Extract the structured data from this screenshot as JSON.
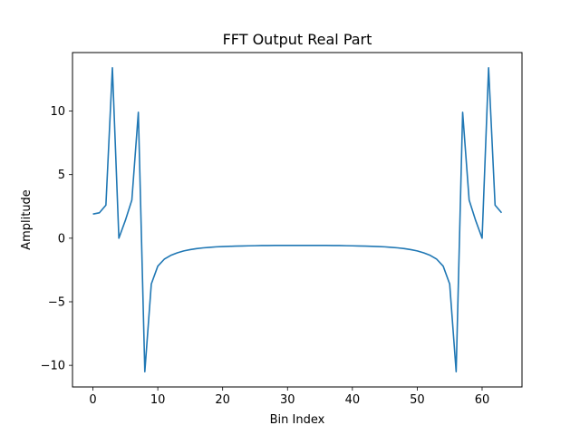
{
  "chart_data": {
    "type": "line",
    "title": "FFT Output Real Part",
    "xlabel": "Bin Index",
    "ylabel": "Amplitude",
    "xlim": [
      -3.15,
      66.15
    ],
    "ylim": [
      -11.7,
      14.6
    ],
    "xticks": [
      0,
      10,
      20,
      30,
      40,
      50,
      60
    ],
    "yticks": [
      -10,
      -5,
      0,
      5,
      10
    ],
    "grid": false,
    "line_color": "#1f77b4",
    "series": [
      {
        "x": [
          0,
          1,
          2,
          3,
          4,
          5,
          6,
          7,
          8,
          9,
          10,
          11,
          12,
          13,
          14,
          15,
          16,
          17,
          18,
          19,
          20,
          21,
          22,
          23,
          24,
          25,
          26,
          27,
          28,
          29,
          30,
          31,
          32,
          33,
          34,
          35,
          36,
          37,
          38,
          39,
          40,
          41,
          42,
          43,
          44,
          45,
          46,
          47,
          48,
          49,
          50,
          51,
          52,
          53,
          54,
          55,
          56,
          57,
          58,
          59,
          60,
          61,
          62,
          63
        ],
        "y": [
          1.9,
          2.0,
          2.6,
          13.4,
          0.0,
          1.4,
          3.0,
          9.9,
          -10.5,
          -3.6,
          -2.2,
          -1.65,
          -1.35,
          -1.15,
          -1.0,
          -0.9,
          -0.82,
          -0.76,
          -0.72,
          -0.68,
          -0.66,
          -0.64,
          -0.62,
          -0.61,
          -0.6,
          -0.59,
          -0.58,
          -0.58,
          -0.57,
          -0.57,
          -0.57,
          -0.57,
          -0.57,
          -0.57,
          -0.57,
          -0.57,
          -0.57,
          -0.58,
          -0.58,
          -0.59,
          -0.6,
          -0.61,
          -0.62,
          -0.64,
          -0.66,
          -0.68,
          -0.72,
          -0.76,
          -0.82,
          -0.9,
          -1.0,
          -1.15,
          -1.35,
          -1.65,
          -2.2,
          -3.6,
          -10.5,
          9.9,
          3.0,
          1.4,
          0.0,
          13.4,
          2.6,
          2.0
        ]
      }
    ]
  }
}
